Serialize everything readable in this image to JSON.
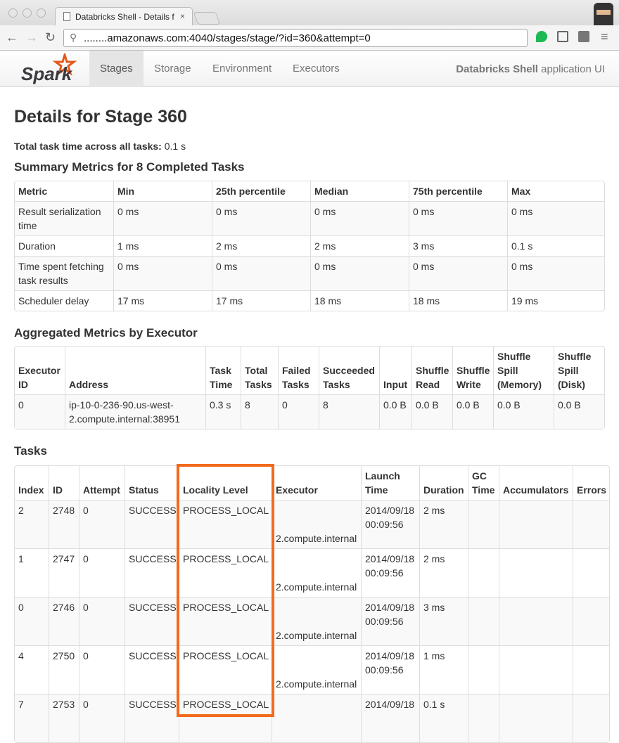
{
  "browser": {
    "tab_title": "Databricks Shell - Details f",
    "url": "........amazonaws.com:4040/stages/stage/?id=360&attempt=0"
  },
  "navbar": {
    "logo": "Spark",
    "items": [
      "Stages",
      "Storage",
      "Environment",
      "Executors"
    ],
    "active": "Stages",
    "app_name_bold": "Databricks Shell",
    "app_name_rest": " application UI"
  },
  "page": {
    "title": "Details for Stage 360",
    "total_label": "Total task time across all tasks:",
    "total_value": " 0.1 s"
  },
  "summary": {
    "title": "Summary Metrics for 8 Completed Tasks",
    "headers": [
      "Metric",
      "Min",
      "25th percentile",
      "Median",
      "75th percentile",
      "Max"
    ],
    "rows": [
      [
        "Result serialization time",
        "0 ms",
        "0 ms",
        "0 ms",
        "0 ms",
        "0 ms"
      ],
      [
        "Duration",
        "1 ms",
        "2 ms",
        "2 ms",
        "3 ms",
        "0.1 s"
      ],
      [
        "Time spent fetching task results",
        "0 ms",
        "0 ms",
        "0 ms",
        "0 ms",
        "0 ms"
      ],
      [
        "Scheduler delay",
        "17 ms",
        "17 ms",
        "18 ms",
        "18 ms",
        "19 ms"
      ]
    ]
  },
  "aggregated": {
    "title": "Aggregated Metrics by Executor",
    "headers": [
      "Executor ID",
      "Address",
      "Task Time",
      "Total Tasks",
      "Failed Tasks",
      "Succeeded Tasks",
      "Input",
      "Shuffle Read",
      "Shuffle Write",
      "Shuffle Spill (Memory)",
      "Shuffle Spill (Disk)"
    ],
    "rows": [
      [
        "0",
        "ip-10-0-236-90.us-west-2.compute.internal:38951",
        "0.3 s",
        "8",
        "0",
        "8",
        "0.0 B",
        "0.0 B",
        "0.0 B",
        "0.0 B",
        "0.0 B"
      ]
    ]
  },
  "tasks": {
    "title": "Tasks",
    "headers": [
      "Index",
      "ID",
      "Attempt",
      "Status",
      "Locality Level",
      "Executor",
      "Launch Time",
      "Duration",
      "GC Time",
      "Accumulators",
      "Errors"
    ],
    "rows": [
      [
        "2",
        "2748",
        "0",
        "SUCCESS",
        "PROCESS_LOCAL",
        "2.compute.internal",
        "2014/09/18 00:09:56",
        "2 ms",
        "",
        "",
        ""
      ],
      [
        "1",
        "2747",
        "0",
        "SUCCESS",
        "PROCESS_LOCAL",
        "2.compute.internal",
        "2014/09/18 00:09:56",
        "2 ms",
        "",
        "",
        ""
      ],
      [
        "0",
        "2746",
        "0",
        "SUCCESS",
        "PROCESS_LOCAL",
        "2.compute.internal",
        "2014/09/18 00:09:56",
        "3 ms",
        "",
        "",
        ""
      ],
      [
        "4",
        "2750",
        "0",
        "SUCCESS",
        "PROCESS_LOCAL",
        "2.compute.internal",
        "2014/09/18 00:09:56",
        "1 ms",
        "",
        "",
        ""
      ],
      [
        "7",
        "2753",
        "0",
        "SUCCESS",
        "PROCESS_LOCAL",
        "",
        "2014/09/18",
        "0.1 s",
        "",
        "",
        ""
      ]
    ]
  },
  "highlight_color": "#f26b1d"
}
